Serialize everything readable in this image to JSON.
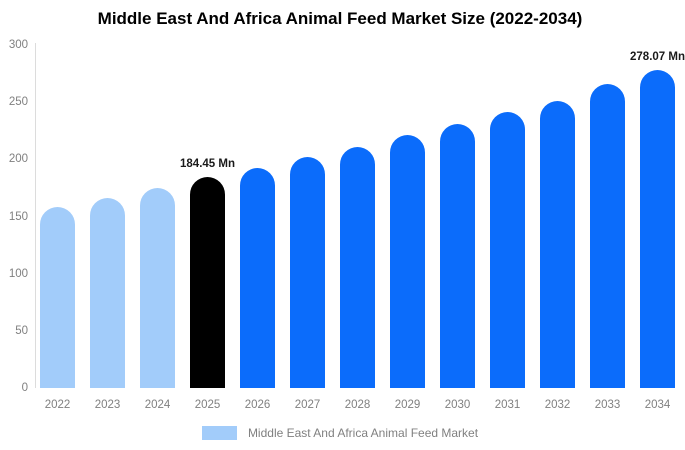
{
  "title": "Middle East And Africa Animal Feed Market Size (2022-2034)",
  "colors": {
    "light_blue": "#a2ccfa",
    "highlight_black": "#000000",
    "blue": "#0b6cfb",
    "axis_text": "#808080",
    "axis_line": "#dcdcdc",
    "annotation_text": "#1a1a1a",
    "background": "#ffffff"
  },
  "chart_data": {
    "type": "bar",
    "title": "Middle East And Africa Animal Feed Market Size (2022-2034)",
    "xlabel": "",
    "ylabel": "",
    "unit": "Mn",
    "categories": [
      "2022",
      "2023",
      "2024",
      "2025",
      "2026",
      "2027",
      "2028",
      "2029",
      "2030",
      "2031",
      "2032",
      "2033",
      "2034"
    ],
    "values": [
      158,
      166,
      175,
      184.45,
      192,
      202,
      211,
      221,
      231,
      241,
      251,
      266,
      278.07
    ],
    "bar_colors": [
      "#a2ccfa",
      "#a2ccfa",
      "#a2ccfa",
      "#000000",
      "#0b6cfb",
      "#0b6cfb",
      "#0b6cfb",
      "#0b6cfb",
      "#0b6cfb",
      "#0b6cfb",
      "#0b6cfb",
      "#0b6cfb",
      "#0b6cfb"
    ],
    "ylim": [
      0,
      300
    ],
    "y_ticks": [
      0,
      50,
      100,
      150,
      200,
      250,
      300
    ],
    "grid": false,
    "annotations": [
      {
        "category": "2025",
        "text": "184.45 Mn"
      },
      {
        "category": "2034",
        "text": "278.07 Mn"
      }
    ],
    "legend": {
      "position": "bottom",
      "swatch_color": "#a2ccfa",
      "label": "Middle East And Africa Animal Feed Market"
    }
  }
}
